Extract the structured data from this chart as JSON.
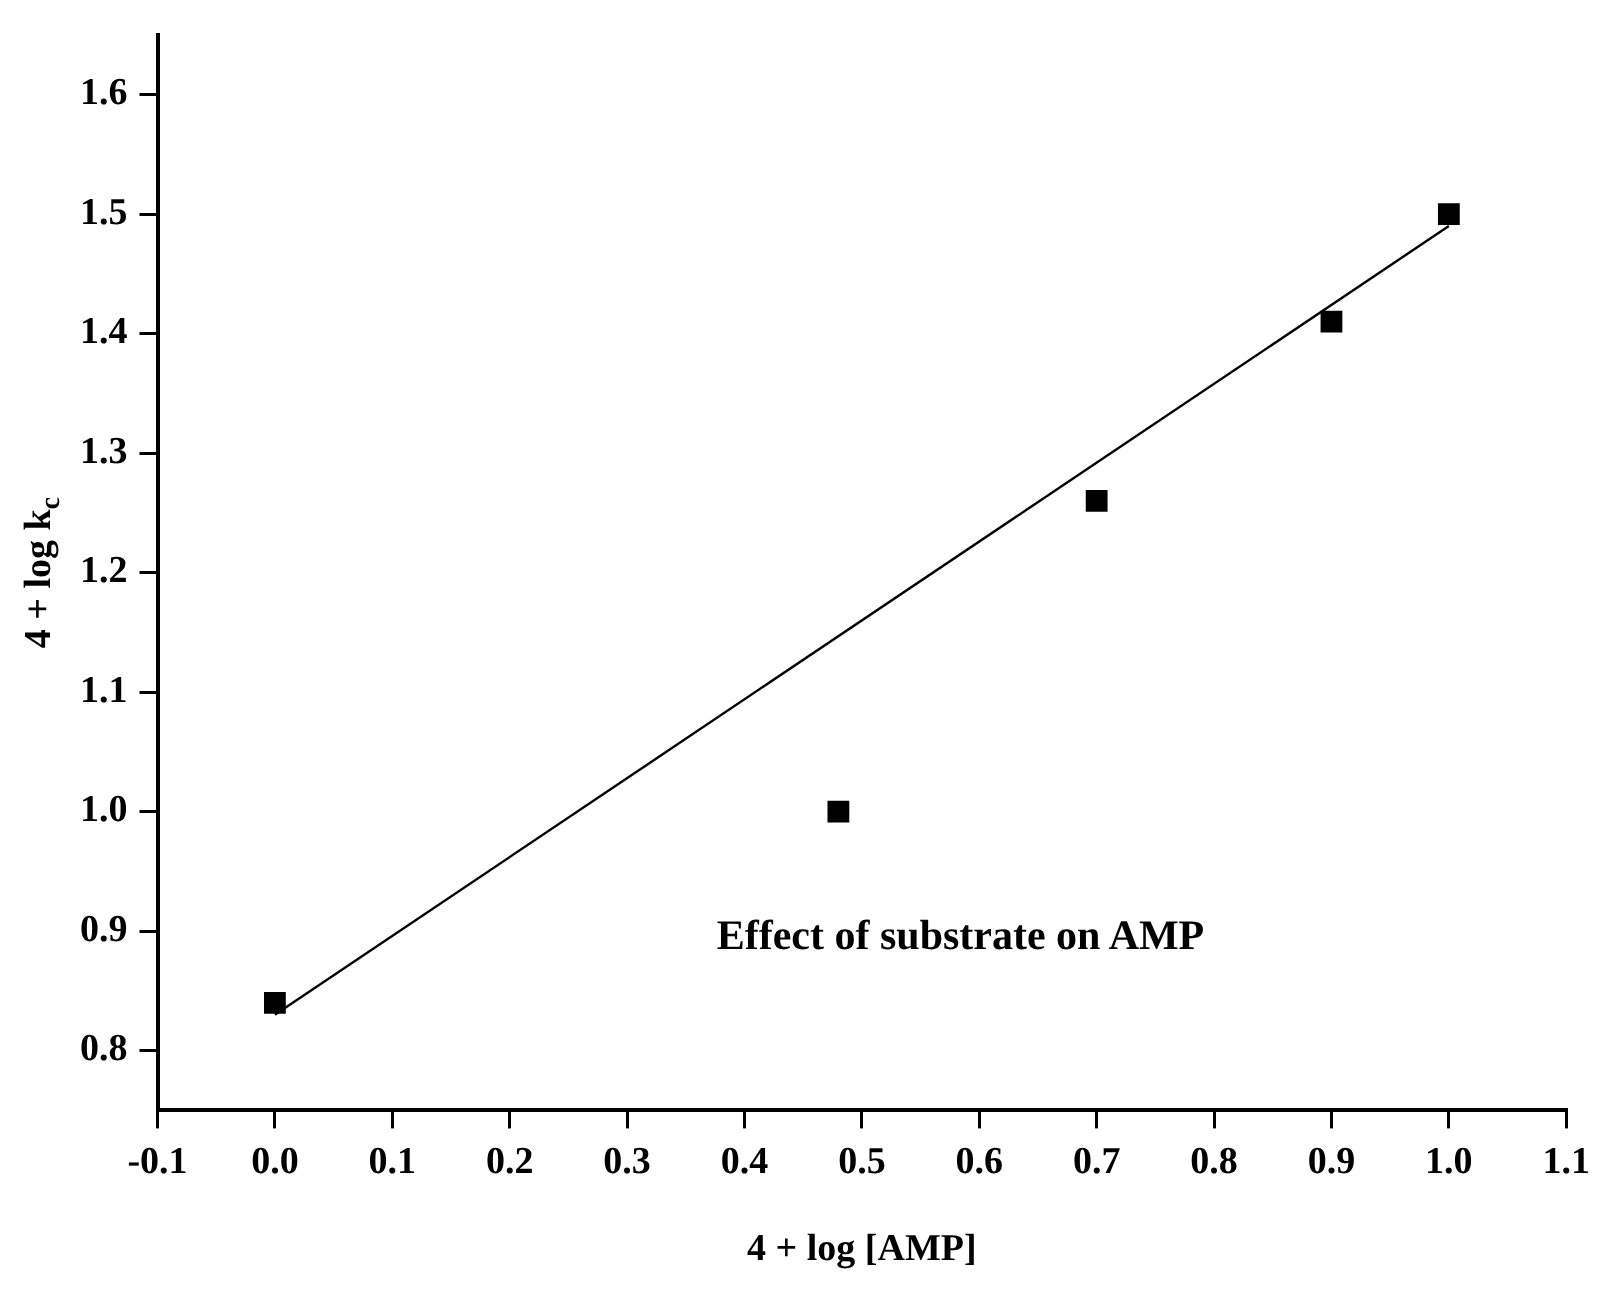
{
  "chart_data": {
    "type": "scatter",
    "xlabel": "4 + log [AMP]",
    "ylabel": "4 + log k$_{c}$",
    "annotations": [
      "Effect of substrate on AMP"
    ],
    "series": [
      {
        "color": "#000000",
        "marker": "square",
        "x": [
          0,
          0.48,
          0.7,
          0.9,
          1.0
        ],
        "values": [
          0.84,
          1.0,
          1.26,
          1.41,
          1.5
        ]
      },
      {
        "type": "line",
        "color": "#000000",
        "marker": "none",
        "x": [
          0,
          1.0
        ],
        "values": [
          0.83,
          1.49
        ]
      }
    ],
    "grid": false,
    "legend": false,
    "xlim": [
      -0.1,
      1.1
    ],
    "xticks": [
      {
        "value": -0.1,
        "label": "-0.1"
      },
      {
        "value": 0,
        "label": "0.0"
      },
      {
        "value": 0.1,
        "label": "0.1"
      },
      {
        "value": 0.2,
        "label": "0.2"
      },
      {
        "value": 0.3,
        "label": "0.3"
      },
      {
        "value": 0.4,
        "label": "0.4"
      },
      {
        "value": 0.5,
        "label": "0.5"
      },
      {
        "value": 0.6,
        "label": "0.6"
      },
      {
        "value": 0.7,
        "label": "0.7"
      },
      {
        "value": 0.8,
        "label": "0.8"
      },
      {
        "value": 0.9,
        "label": "0.9"
      },
      {
        "value": 1.0,
        "label": "1.0"
      },
      {
        "value": 1.1,
        "label": "1.1"
      }
    ],
    "ylim": [
      0.75,
      1.65
    ],
    "yticks": [
      {
        "value": 0.8,
        "label": "0.8"
      },
      {
        "value": 0.9,
        "label": "0.9"
      },
      {
        "value": 1.0,
        "label": "1.0"
      },
      {
        "value": 1.1,
        "label": "1.1"
      },
      {
        "value": 1.2,
        "label": "1.2"
      },
      {
        "value": 1.3,
        "label": "1.3"
      },
      {
        "value": 1.4,
        "label": "1.4"
      },
      {
        "value": 1.5,
        "label": "1.5"
      },
      {
        "value": 1.6,
        "label": "1.6"
      }
    ]
  }
}
